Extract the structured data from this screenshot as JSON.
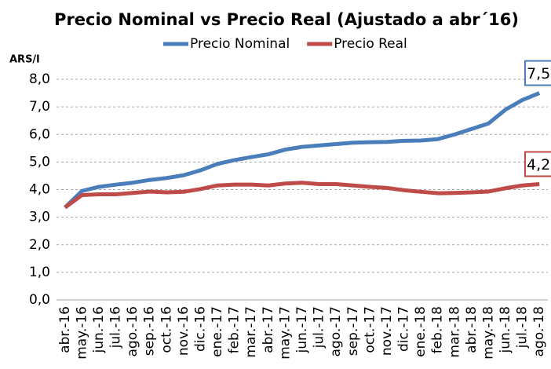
{
  "chart_data": {
    "type": "line",
    "title": "Precio Nominal vs Precio Real (Ajustado a abr´16)",
    "y_label": "ARS/l",
    "categories": [
      "abr.-16",
      "may.-16",
      "jun.-16",
      "jul.-16",
      "ago.-16",
      "sep.-16",
      "oct.-16",
      "nov.-16",
      "dic.-16",
      "ene.-17",
      "feb.-17",
      "mar.-17",
      "abr.-17",
      "may.-17",
      "jun.-17",
      "jul.-17",
      "ago.-17",
      "sep.-17",
      "oct.-17",
      "nov.-17",
      "dic.-17",
      "ene.-18",
      "feb.-18",
      "mar.-18",
      "abr.-18",
      "may.-18",
      "jun.-18",
      "jul.-18",
      "ago.-18"
    ],
    "series": [
      {
        "name": "Precio Nominal",
        "color": "#4a7ebb",
        "values": [
          3.35,
          3.95,
          4.1,
          4.18,
          4.25,
          4.35,
          4.42,
          4.52,
          4.7,
          4.93,
          5.07,
          5.18,
          5.28,
          5.45,
          5.55,
          5.6,
          5.65,
          5.7,
          5.72,
          5.73,
          5.77,
          5.78,
          5.83,
          6.0,
          6.2,
          6.4,
          6.9,
          7.25,
          7.5
        ],
        "value_labels": [
          null,
          null,
          null,
          null,
          null,
          null,
          null,
          null,
          null,
          null,
          null,
          null,
          null,
          null,
          null,
          null,
          null,
          null,
          null,
          null,
          null,
          null,
          null,
          null,
          null,
          null,
          null,
          null,
          "7,5"
        ]
      },
      {
        "name": "Precio Real",
        "color": "#be4b48",
        "values": [
          3.35,
          3.8,
          3.83,
          3.83,
          3.88,
          3.93,
          3.9,
          3.92,
          4.02,
          4.15,
          4.18,
          4.18,
          4.15,
          4.22,
          4.25,
          4.2,
          4.2,
          4.15,
          4.1,
          4.06,
          3.98,
          3.92,
          3.87,
          3.88,
          3.9,
          3.93,
          4.05,
          4.15,
          4.2
        ],
        "value_labels": [
          null,
          null,
          null,
          null,
          null,
          null,
          null,
          null,
          null,
          null,
          null,
          null,
          null,
          null,
          null,
          null,
          null,
          null,
          null,
          null,
          null,
          null,
          null,
          null,
          null,
          null,
          null,
          null,
          "4,2"
        ]
      }
    ],
    "ylim": [
      0,
      8
    ],
    "yticks": [
      {
        "value": 0,
        "label": "0,0"
      },
      {
        "value": 1,
        "label": "1,0"
      },
      {
        "value": 2,
        "label": "2,0"
      },
      {
        "value": 3,
        "label": "3,0"
      },
      {
        "value": 4,
        "label": "4,0"
      },
      {
        "value": 5,
        "label": "5,0"
      },
      {
        "value": 6,
        "label": "6,0"
      },
      {
        "value": 7,
        "label": "7,0"
      },
      {
        "value": 8,
        "label": "8,0"
      }
    ],
    "grid": true,
    "legend": "top"
  }
}
